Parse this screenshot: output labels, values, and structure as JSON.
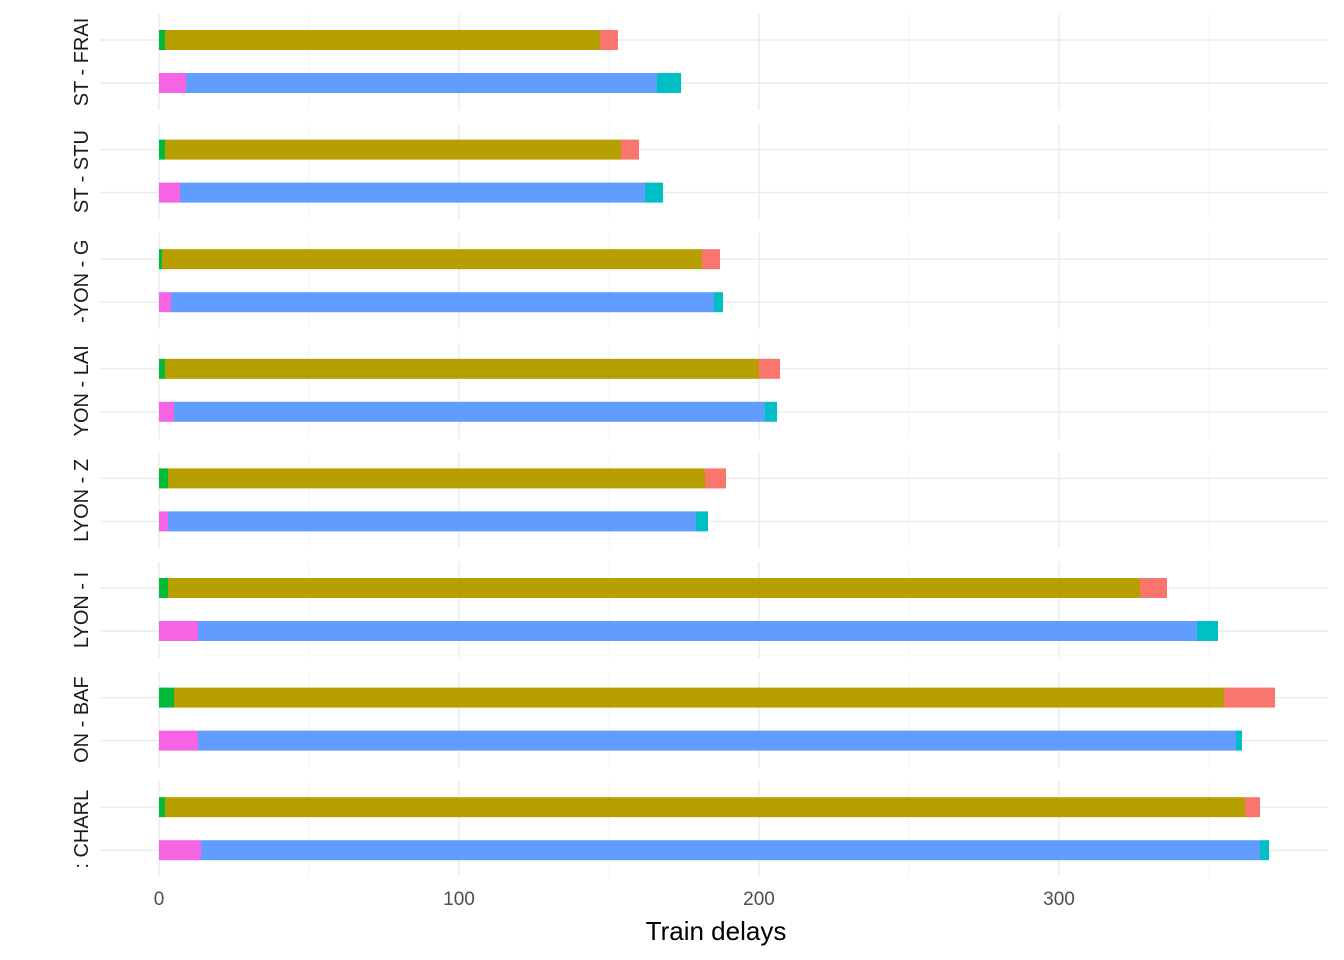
{
  "chart_data": {
    "type": "bar",
    "orientation": "horizontal",
    "stacked": true,
    "xlabel": "Train delays",
    "ylabel": "",
    "xlim": [
      0,
      390
    ],
    "x_ticks": [
      "0",
      "100",
      "200",
      "300"
    ],
    "grid": true,
    "legend": "none",
    "colors": {
      "row_a": [
        "#00BA38",
        "#B79F00",
        "#F8766D"
      ],
      "row_b": [
        "#F564E3",
        "#619CFF",
        "#00BFC4"
      ]
    },
    "facets": [
      {
        "label": "ST - FRAI",
        "row_a": [
          2,
          145,
          6
        ],
        "row_b": [
          9,
          157,
          8
        ]
      },
      {
        "label": "ST - STU",
        "row_a": [
          2,
          152,
          6
        ],
        "row_b": [
          7,
          155,
          6
        ]
      },
      {
        "label": "-YON - G",
        "row_a": [
          1,
          180,
          6
        ],
        "row_b": [
          4,
          181,
          3
        ]
      },
      {
        "label": "YON - LAI",
        "row_a": [
          2,
          198,
          7
        ],
        "row_b": [
          5,
          197,
          4
        ]
      },
      {
        "label": "LYON - Z",
        "row_a": [
          3,
          179,
          7
        ],
        "row_b": [
          3,
          176,
          4
        ]
      },
      {
        "label": "LYON - I",
        "row_a": [
          3,
          324,
          9
        ],
        "row_b": [
          13,
          333,
          7
        ]
      },
      {
        "label": "ON - BAF",
        "row_a": [
          5,
          350,
          17
        ],
        "row_b": [
          13,
          346,
          2
        ]
      },
      {
        "label": ": CHARL",
        "row_a": [
          2,
          360,
          5
        ],
        "row_b": [
          14,
          353,
          3
        ]
      }
    ]
  }
}
